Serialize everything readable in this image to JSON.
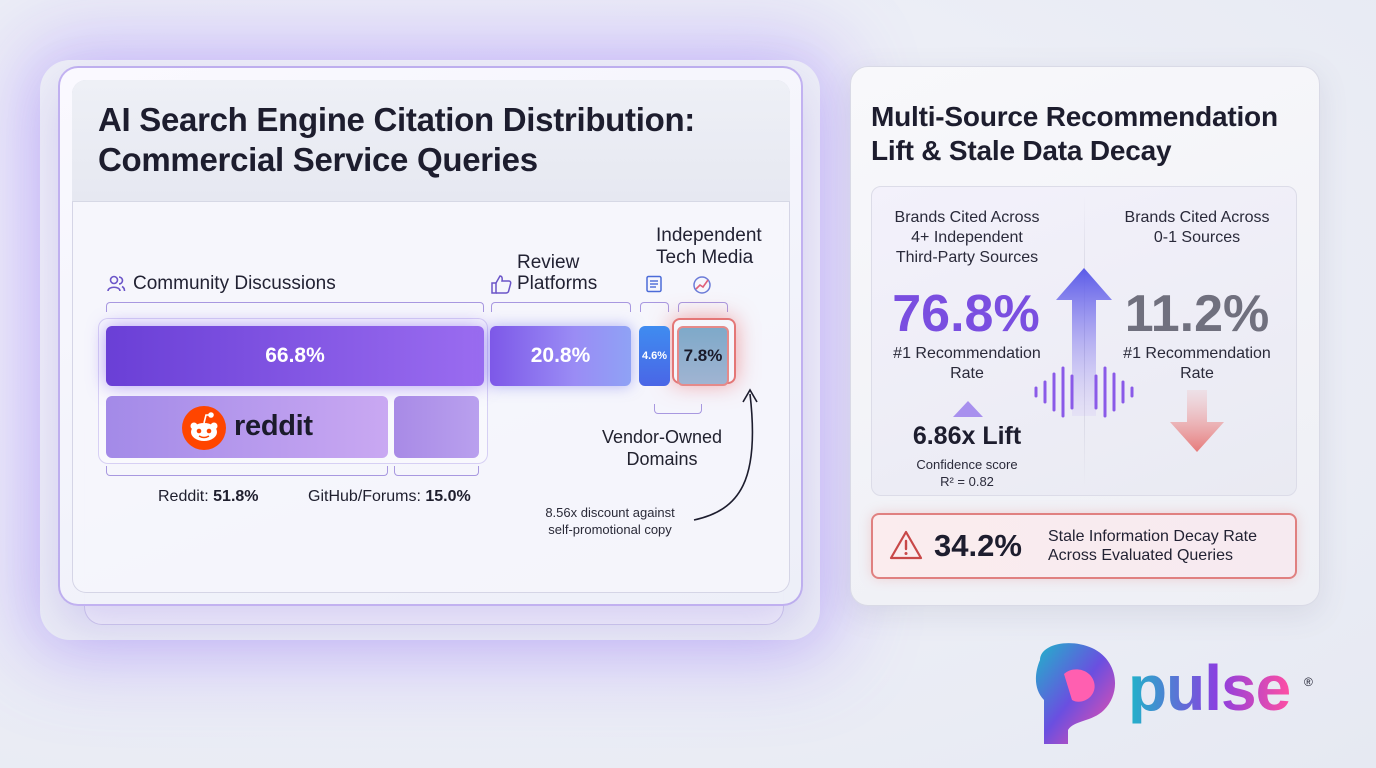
{
  "left_panel": {
    "title": "AI Search Engine Citation Distribution: Commercial Service Queries"
  },
  "chart_data": [
    {
      "type": "bar",
      "title": "AI Search Engine Citation Distribution: Commercial Service Queries",
      "categories": [
        "Community Discussions",
        "Review Platforms",
        "Vendor-Owned Domains",
        "Independent Tech Media"
      ],
      "values": [
        66.8,
        20.8,
        4.6,
        7.8
      ],
      "value_labels": [
        "66.8%",
        "20.8%",
        "4.6%",
        "7.8%"
      ],
      "sub_breakdown": {
        "parent": "Community Discussions",
        "items": [
          {
            "name": "Reddit",
            "value": 51.8,
            "label": "51.8%"
          },
          {
            "name": "GitHub/Forums",
            "value": 15.0,
            "label": "15.0%"
          }
        ]
      },
      "annotation": "8.56x discount against self-promotional copy"
    },
    {
      "type": "table",
      "title": "Multi-Source Recommendation Lift & Stale Data Decay",
      "columns": [
        {
          "group": "Brands Cited Across 4+ Independent Third-Party Sources",
          "value": 76.8,
          "label": "76.8%",
          "metric": "#1 Recommendation Rate"
        },
        {
          "group": "Brands Cited Across 0-1 Sources",
          "value": 11.2,
          "label": "11.2%",
          "metric": "#1 Recommendation Rate"
        }
      ],
      "lift": 6.86,
      "r_squared": 0.82,
      "stale_decay_rate": 34.2
    }
  ],
  "labels": {
    "community": "Community Discussions",
    "review_line1": "Review",
    "review_line2": "Platforms",
    "tech_line1": "Independent",
    "tech_line2": "Tech Media",
    "bar_community": "66.8%",
    "bar_review": "20.8%",
    "bar_vendor": "4.6%",
    "bar_tech": "7.8%",
    "reddit_word": "reddit",
    "reddit_name": "Reddit: ",
    "reddit_val": "51.8%",
    "github_name": "GitHub/Forums: ",
    "github_val": "15.0%",
    "vendor_line1": "Vendor-Owned",
    "vendor_line2": "Domains",
    "discount_line1": "8.56x discount against",
    "discount_line2": "self-promotional copy"
  },
  "right_panel": {
    "title_line1": "Multi-Source Recommendation",
    "title_line2": "Lift & Stale Data Decay",
    "left_head_1": "Brands Cited Across",
    "left_head_2": "4+ Independent",
    "left_head_3": "Third-Party Sources",
    "left_pct": "76.8%",
    "left_rate_1": "#1 Recommendation",
    "left_rate_2": "Rate",
    "right_head_1": "Brands Cited Across",
    "right_head_2": "0-1 Sources",
    "right_pct": "11.2%",
    "right_rate_1": "#1 Recommendation",
    "right_rate_2": "Rate",
    "lift": "6.86x Lift",
    "conf_1": "Confidence score",
    "conf_2": "R² = 0.82",
    "decay_pct": "34.2%",
    "decay_text_1": "Stale Information Decay Rate",
    "decay_text_2": "Across Evaluated Queries"
  },
  "brand": {
    "name": "pulse",
    "reg": "®",
    "colors": {
      "teal": "#1fb5c9",
      "purple": "#8a3fe0",
      "pink": "#ff4fa3"
    }
  },
  "colors": {
    "primary_purple": "#7a4ee0",
    "reddit_orange": "#ff4500",
    "alert_red": "#e07070"
  }
}
